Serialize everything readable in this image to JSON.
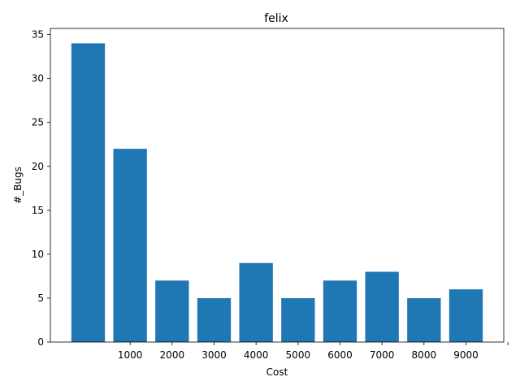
{
  "chart_data": {
    "type": "bar",
    "title": "felix",
    "xlabel": "Cost",
    "ylabel": "#_Bugs",
    "bar_color": "#1f77b4",
    "bar_centers": [
      0,
      1000,
      2000,
      3000,
      4000,
      5000,
      6000,
      7000,
      8000,
      9000
    ],
    "values": [
      34,
      22,
      7,
      5,
      9,
      5,
      7,
      8,
      5,
      6
    ],
    "bar_width": 800,
    "xticks": [
      1000,
      2000,
      3000,
      4000,
      5000,
      6000,
      7000,
      8000,
      9000,
      10000
    ],
    "xtick_labels": [
      "1000",
      "2000",
      "3000",
      "4000",
      "5000",
      "6000",
      "7000",
      "8000",
      "9000",
      ""
    ],
    "xlim": [
      -900,
      9900
    ],
    "yticks": [
      0,
      5,
      10,
      15,
      20,
      25,
      30,
      35
    ],
    "ytick_labels": [
      "0",
      "5",
      "10",
      "15",
      "20",
      "25",
      "30",
      "35"
    ],
    "ylim": [
      0,
      35.7
    ],
    "grid": false,
    "legend": false
  }
}
